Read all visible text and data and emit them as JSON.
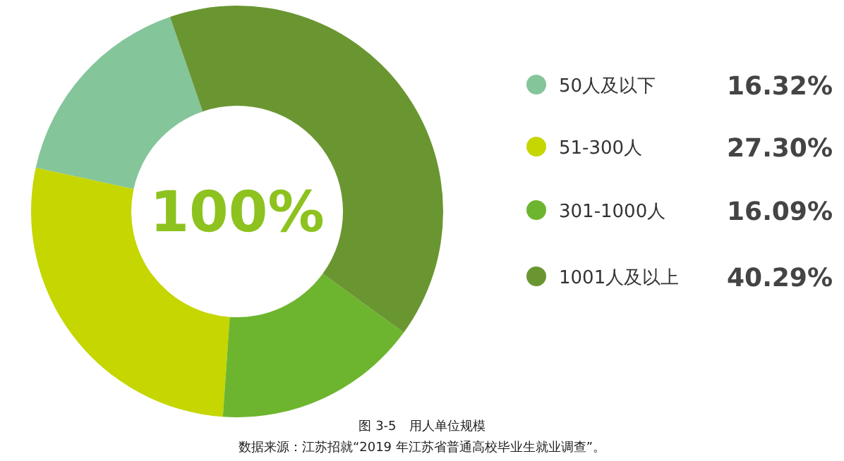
{
  "chart_data": {
    "type": "donut",
    "title": "图 3-5　用人单位规模",
    "annotations": [
      "100%",
      "数据来源：江苏招就“2019 年江苏省普通高校毕业生就业调查”。"
    ],
    "categories": [
      "50人及以下",
      "51-300人",
      "301-1000人",
      "1001人及以上"
    ],
    "values": [
      16.32,
      27.3,
      16.09,
      40.29
    ],
    "value_labels": [
      "16.32%",
      "27.30%",
      "16.09%",
      "40.29%"
    ],
    "colors": [
      "#84c59a",
      "#c5d600",
      "#6db52e",
      "#6a9632"
    ],
    "legend": "right"
  }
}
